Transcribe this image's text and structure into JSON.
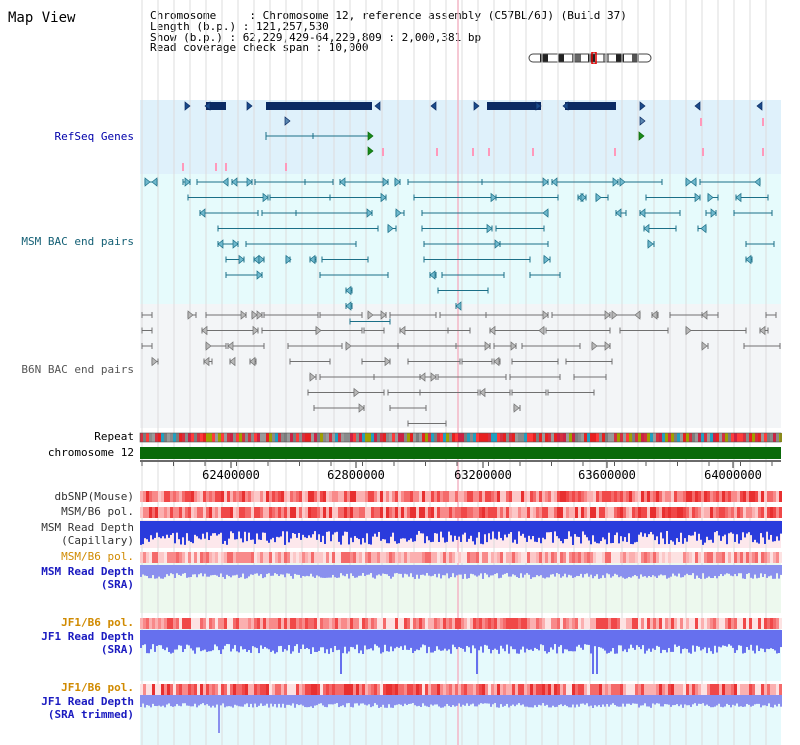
{
  "page": {
    "title": "Map View"
  },
  "info": {
    "chromosome": "Chromosome     : Chromosome 12, reference assembly (C57BL/6J) (Build 37)",
    "length": "Length (b.p.) : 121,257,530",
    "show": "Show (b.p.) : 62,229,429-64,229,809 : 2,000,381 bp",
    "coverage": "Read coverage check span : 10,000"
  },
  "tracks": {
    "refseq": "RefSeq Genes",
    "msm_bac": "MSM BAC end pairs",
    "b6n_bac": "B6N BAC end pairs",
    "repeat": "Repeat",
    "chromosome": "chromosome 12",
    "dbsnp": "dbSNP(Mouse)",
    "msm_b6_pol": "MSM/B6 pol.",
    "msm_capillary_1": "MSM Read Depth",
    "msm_capillary_2": "(Capillary)",
    "msm_b6_pol_2": "MSM/B6 pol.",
    "msm_sra_1": "MSM Read Depth",
    "msm_sra_2": "(SRA)",
    "jf1_b6_pol": "JF1/B6 pol.",
    "jf1_sra_1": "JF1 Read Depth",
    "jf1_sra_2": "(SRA)",
    "jf1_b6_pol_2": "JF1/B6 pol.",
    "jf1_trim_1": "JF1 Read Depth",
    "jf1_trim_2": "(SRA trimmed)"
  },
  "axis": {
    "ticks": [
      "62400000",
      "62800000",
      "63200000",
      "63600000",
      "64000000"
    ],
    "range": [
      62229429,
      64229809
    ]
  },
  "colors": {
    "refseq_bg": "#dff1fb",
    "msm_bg": "#e6fbfc",
    "b6n_bg": "#f3f5f7",
    "navy": "#0b2a63",
    "teal": "#1b6f87",
    "gray": "#707070",
    "chrom_green": "#0a6a0a",
    "blue": "#2a3bdc",
    "orange": "#d08a00"
  }
}
